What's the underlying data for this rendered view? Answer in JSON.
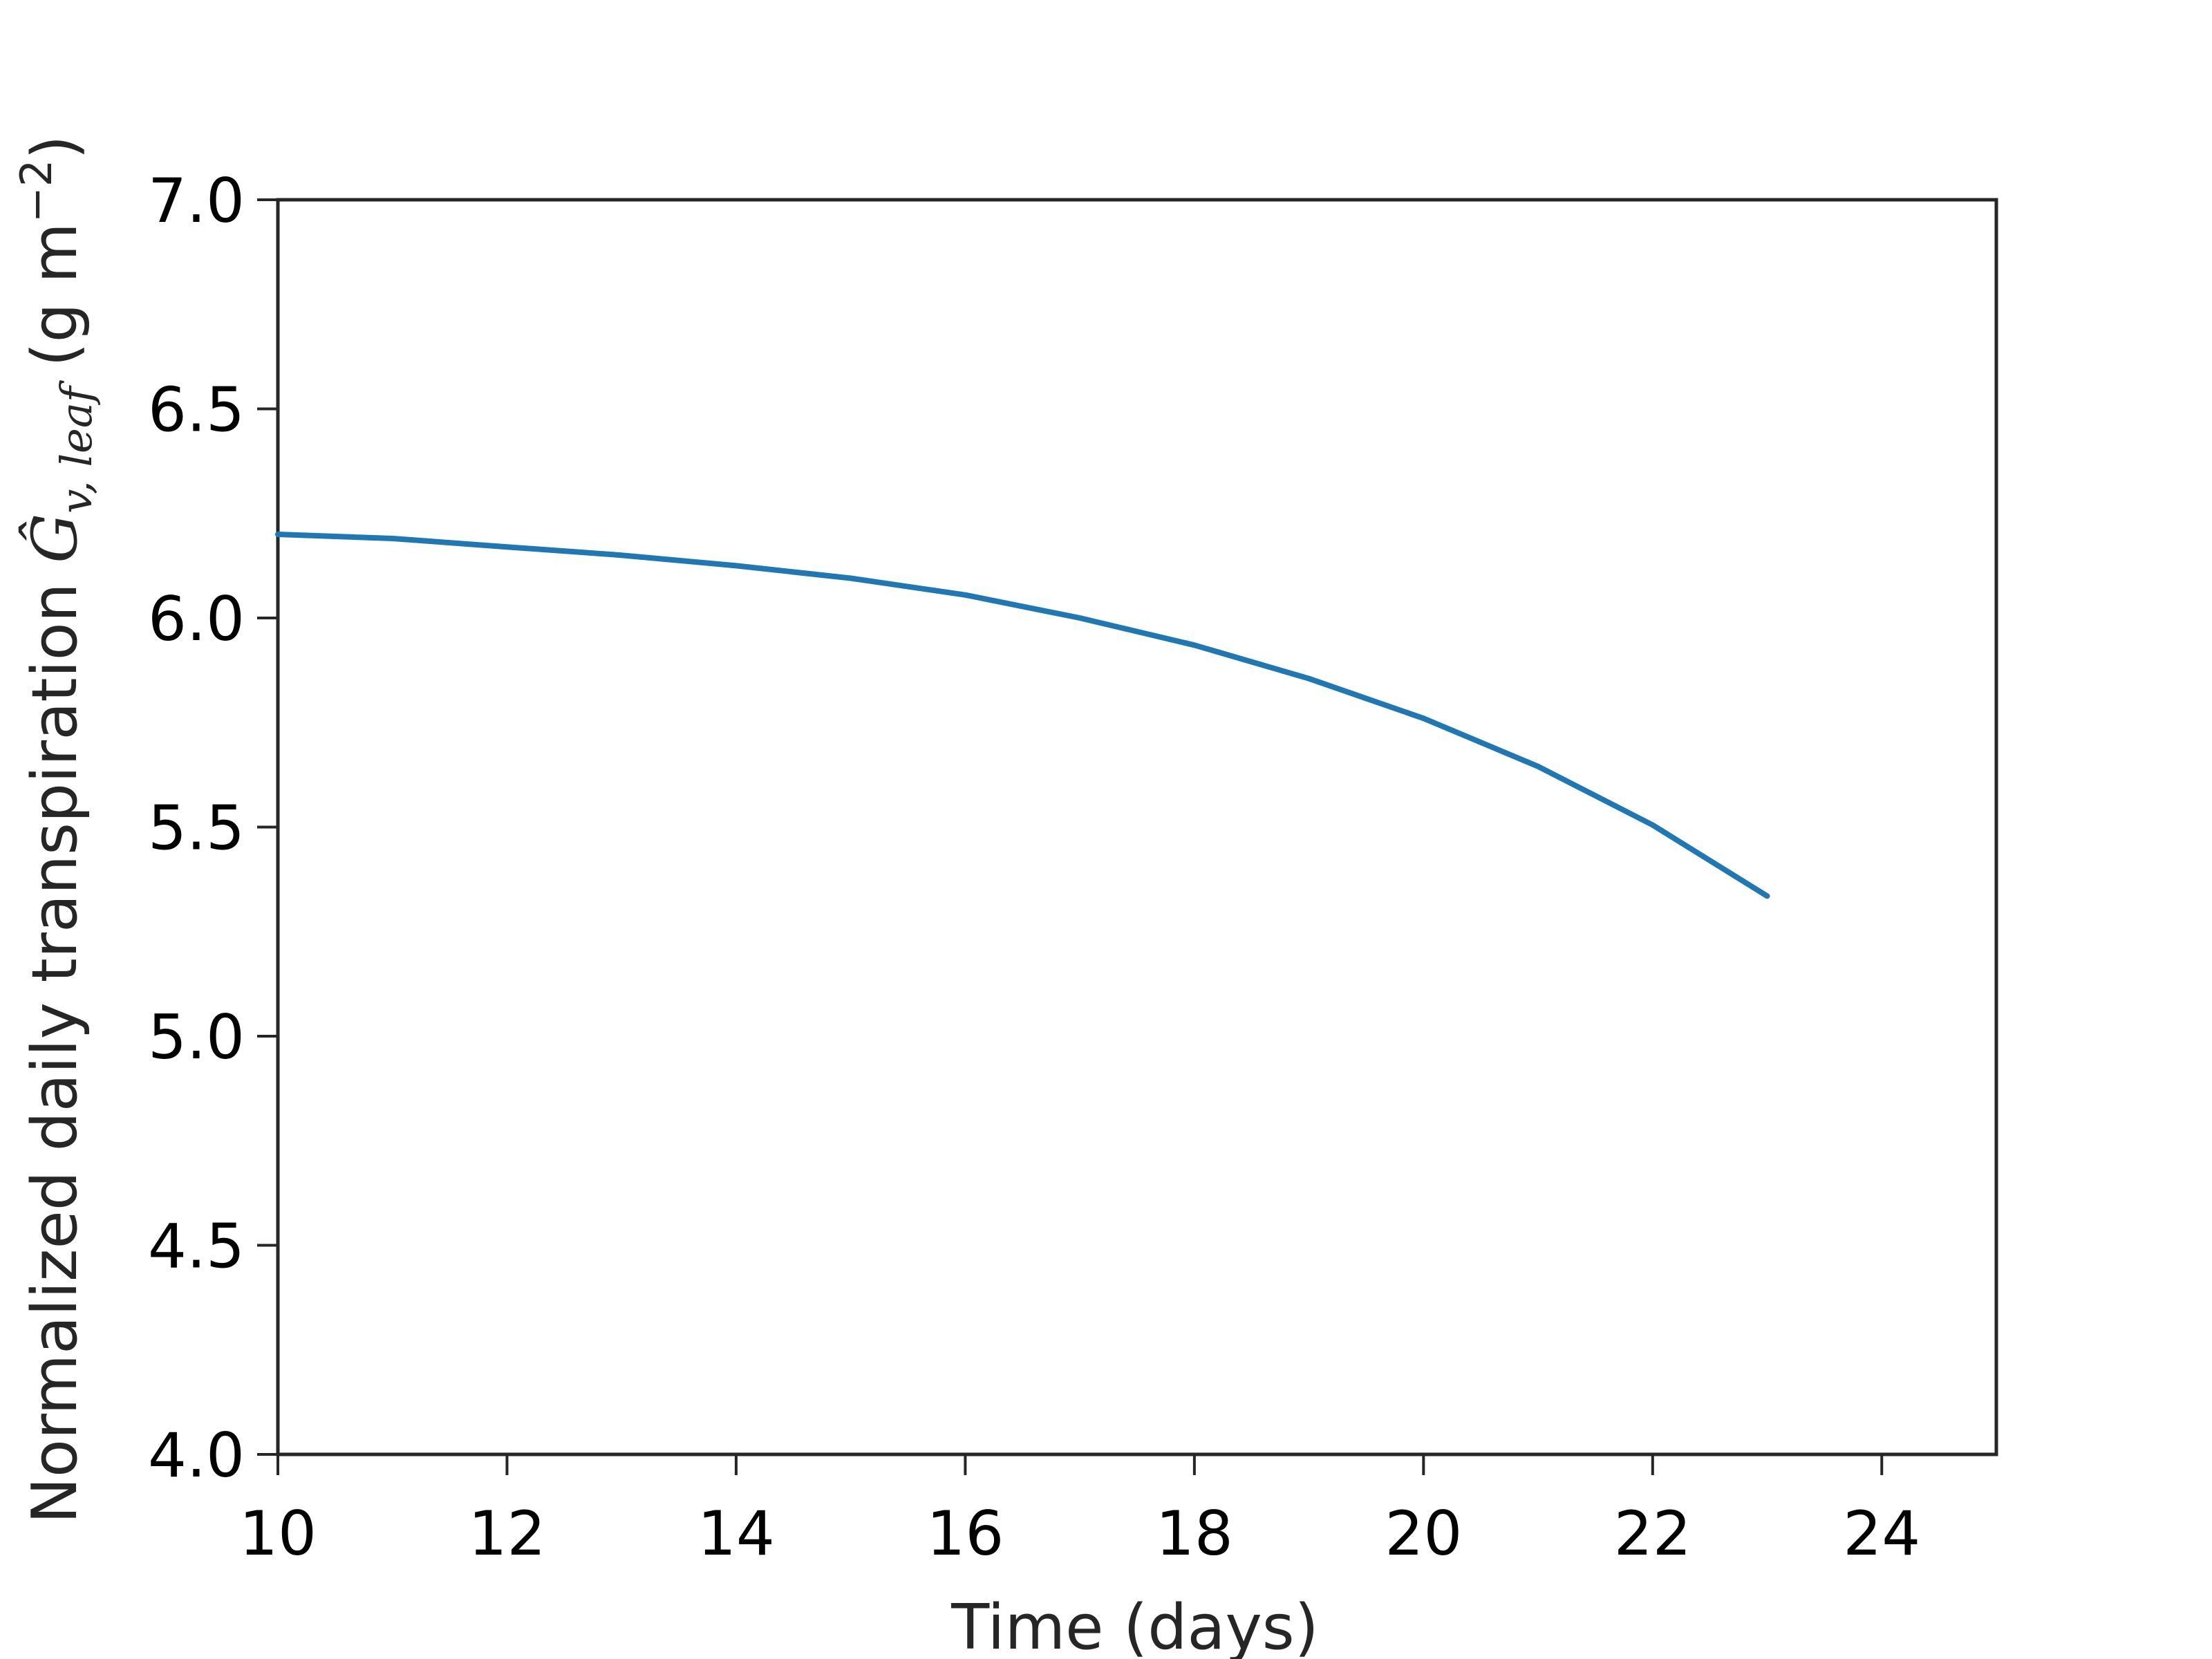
{
  "chart_data": {
    "type": "line",
    "title": "",
    "xlabel": "Time (days)",
    "ylabel": {
      "text": "Normalized daily transpiration ",
      "symbol": "Ĝ",
      "subscript": "v, leaf",
      "unit_open": " (g m",
      "unit_exp": "−2",
      "unit_close": ")"
    },
    "xlim": [
      10,
      25
    ],
    "ylim": [
      4.0,
      7.0
    ],
    "xticks": [
      10,
      12,
      14,
      16,
      18,
      20,
      22,
      24
    ],
    "xtick_labels": [
      "10",
      "12",
      "14",
      "16",
      "18",
      "20",
      "22",
      "24"
    ],
    "yticks": [
      4.0,
      4.5,
      5.0,
      5.5,
      6.0,
      6.5,
      7.0
    ],
    "ytick_labels": [
      "4.0",
      "4.5",
      "5.0",
      "5.5",
      "6.0",
      "6.5",
      "7.0"
    ],
    "grid": false,
    "series": [
      {
        "color": "#1f77b4",
        "x": [
          10,
          11,
          12,
          13,
          14,
          15,
          16,
          17,
          18,
          19,
          20,
          21,
          22,
          23
        ],
        "y": [
          6.2,
          6.19,
          6.17,
          6.15,
          6.125,
          6.095,
          6.055,
          6.0,
          5.935,
          5.855,
          5.76,
          5.645,
          5.505,
          5.335
        ]
      }
    ]
  }
}
